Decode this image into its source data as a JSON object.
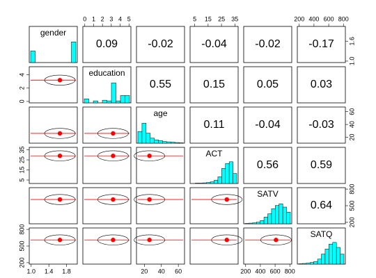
{
  "chart_data": {
    "type": "pairs",
    "variables": [
      {
        "name": "gender",
        "lim": [
          1,
          2
        ],
        "mean": 1.65,
        "xticks": [
          {
            "value": 1,
            "label": "1.0"
          },
          {
            "value": 1.4,
            "label": "1.4"
          },
          {
            "value": 1.8,
            "label": "1.8"
          }
        ],
        "yticks": [
          {
            "value": 1,
            "label": "1.0"
          },
          {
            "value": 1.6,
            "label": "1.6"
          }
        ],
        "bins": [
          1,
          1.1,
          1.2,
          1.3,
          1.4,
          1.5,
          1.6,
          1.7,
          1.8,
          1.9,
          2
        ],
        "hist": [
          0.35,
          0,
          0,
          0,
          0,
          0,
          0,
          0,
          0,
          0.62
        ]
      },
      {
        "name": "education",
        "lim": [
          0,
          5
        ],
        "mean": 3.2,
        "xticks": [
          0,
          1,
          2,
          3,
          4,
          5
        ],
        "yticks": [
          0,
          2,
          4
        ],
        "bins": [
          0,
          0.5,
          1,
          1.5,
          2,
          2.5,
          3,
          3.5,
          4,
          4.5,
          5
        ],
        "hist": [
          0.12,
          0,
          0.06,
          0,
          0.08,
          0.06,
          0.6,
          0.06,
          0.22,
          0.22
        ]
      },
      {
        "name": "age",
        "lim": [
          13,
          65
        ],
        "mean": 26,
        "xticks": [
          20,
          40,
          60
        ],
        "yticks": [
          20,
          40,
          60
        ],
        "bins": [
          10,
          15,
          20,
          25,
          30,
          35,
          40,
          45,
          50,
          55,
          60,
          65
        ],
        "hist": [
          0.35,
          0.6,
          0.3,
          0.15,
          0.1,
          0.08,
          0.05,
          0.04,
          0.03,
          0.02,
          0.01
        ]
      },
      {
        "name": "ACT",
        "lim": [
          3,
          36
        ],
        "mean": 29,
        "xticks": [
          5,
          15,
          25,
          35
        ],
        "yticks": [
          5,
          15,
          25,
          35
        ],
        "bins": [
          0,
          3,
          6,
          9,
          12,
          15,
          18,
          21,
          24,
          27,
          30,
          33,
          36
        ],
        "hist": [
          0,
          0.01,
          0.01,
          0.02,
          0.03,
          0.05,
          0.1,
          0.2,
          0.45,
          0.6,
          0.65,
          0.3
        ]
      },
      {
        "name": "SATV",
        "lim": [
          200,
          800
        ],
        "mean": 612,
        "xticks": [
          200,
          400,
          600,
          800
        ],
        "yticks": [
          200,
          500,
          800
        ],
        "bins": [
          200,
          250,
          300,
          350,
          400,
          450,
          500,
          550,
          600,
          650,
          700,
          750,
          800
        ],
        "hist": [
          0.01,
          0.02,
          0.03,
          0.05,
          0.1,
          0.2,
          0.3,
          0.45,
          0.55,
          0.6,
          0.5,
          0.35
        ]
      },
      {
        "name": "SATQ",
        "lim": [
          200,
          800
        ],
        "mean": 610,
        "xticks": [
          200,
          400,
          600,
          800
        ],
        "yticks": [
          200,
          500,
          800
        ],
        "bins": [
          200,
          250,
          300,
          350,
          400,
          450,
          500,
          550,
          600,
          650,
          700,
          750,
          800
        ],
        "hist": [
          0.01,
          0.02,
          0.03,
          0.05,
          0.08,
          0.15,
          0.3,
          0.45,
          0.6,
          0.65,
          0.5,
          0.3
        ]
      }
    ],
    "correlations": [
      [
        0.09,
        -0.02,
        -0.04,
        -0.02,
        -0.17
      ],
      [
        0.55,
        0.15,
        0.05,
        0.03
      ],
      [
        0.11,
        -0.04,
        -0.03
      ],
      [
        0.56,
        0.59
      ],
      [
        0.64
      ]
    ],
    "hist_color": "#00ffff",
    "point_color": "#ff0000"
  }
}
